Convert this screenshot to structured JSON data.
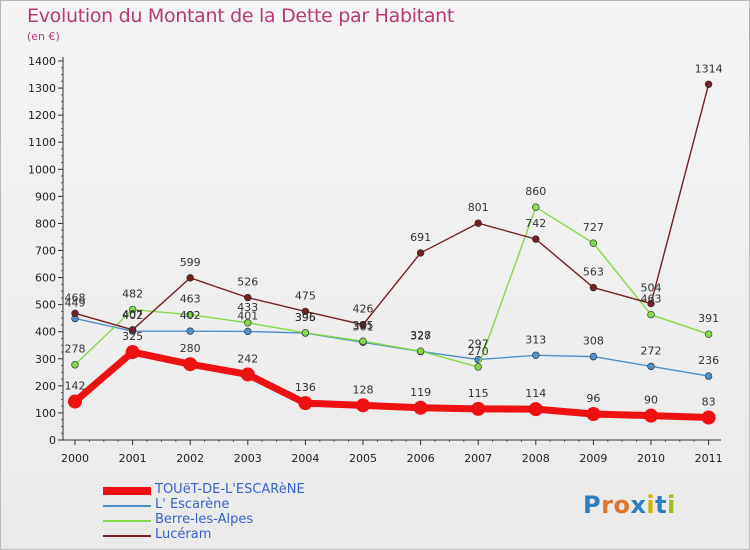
{
  "title": "Evolution du Montant de la Dette par Habitant",
  "subtitle": "(en €)",
  "logo": {
    "text": "Proxiti",
    "colors": [
      "#2f7fc4",
      "#e0762b",
      "#e0762b",
      "#2f7fc4",
      "#d8b200",
      "#2f7fc4",
      "#98c21e"
    ]
  },
  "chart_data": {
    "type": "line",
    "title": "Evolution du Montant de la Dette par Habitant",
    "subtitle": "(en €)",
    "x": [
      "2000",
      "2001",
      "2002",
      "2003",
      "2004",
      "2005",
      "2006",
      "2007",
      "2008",
      "2009",
      "2010",
      "2011"
    ],
    "ylim": [
      0,
      1400
    ],
    "yticks": [
      0,
      100,
      200,
      300,
      400,
      500,
      600,
      700,
      800,
      900,
      1000,
      1100,
      1200,
      1300,
      1400
    ],
    "grid": false,
    "legend_position": "bottom-left",
    "series": [
      {
        "name": "TOUëT-DE-L'ESCARèNE",
        "color": "#ee1111",
        "emphasis": true,
        "values": [
          142,
          325,
          280,
          242,
          136,
          128,
          119,
          115,
          114,
          96,
          90,
          83
        ]
      },
      {
        "name": "L' Escarène",
        "color": "#4f8fc7",
        "values": [
          449,
          402,
          402,
          401,
          395,
          361,
          327,
          297,
          313,
          308,
          272,
          236
        ]
      },
      {
        "name": "Berre-les-Alpes",
        "color": "#86d94a",
        "values": [
          278,
          482,
          463,
          433,
          396,
          365,
          328,
          270,
          860,
          727,
          463,
          391
        ]
      },
      {
        "name": "Lucéram",
        "color": "#722222",
        "values": [
          468,
          407,
          599,
          526,
          475,
          426,
          691,
          801,
          742,
          563,
          504,
          1314
        ]
      }
    ]
  }
}
